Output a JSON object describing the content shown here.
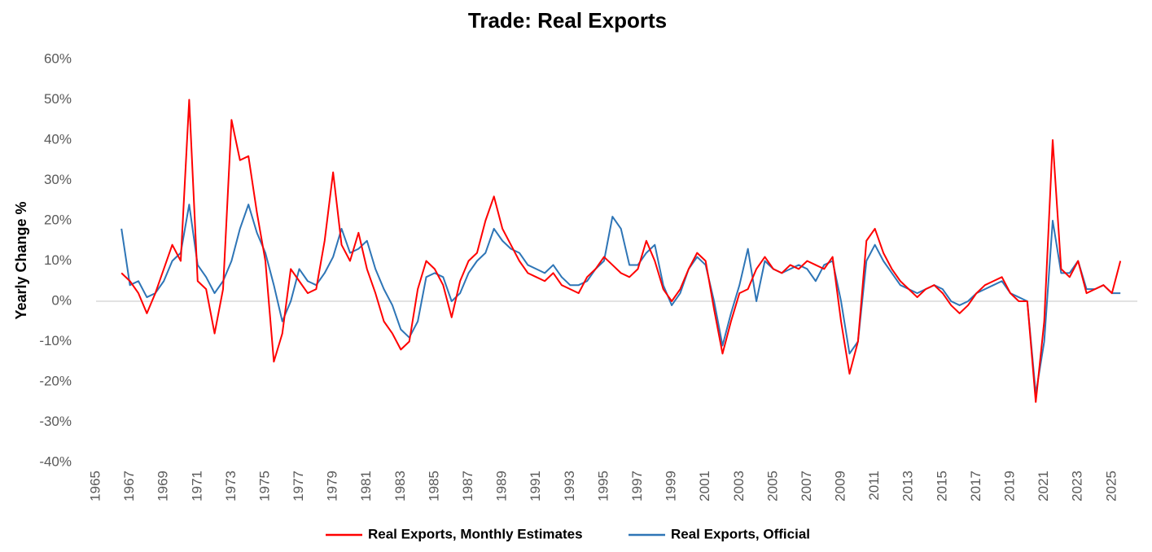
{
  "chart_data": {
    "type": "line",
    "title": "Trade: Real Exports",
    "y_label": "Yearly Change %",
    "x": [
      1966.5,
      1967,
      1967.5,
      1968,
      1968.5,
      1969,
      1969.5,
      1970,
      1970.5,
      1971,
      1971.5,
      1972,
      1972.5,
      1973,
      1973.5,
      1974,
      1974.5,
      1975,
      1975.5,
      1976,
      1976.5,
      1977,
      1977.5,
      1978,
      1978.5,
      1979,
      1979.5,
      1980,
      1980.5,
      1981,
      1981.5,
      1982,
      1982.5,
      1983,
      1983.5,
      1984,
      1984.5,
      1985,
      1985.5,
      1986,
      1986.5,
      1987,
      1987.5,
      1988,
      1988.5,
      1989,
      1989.5,
      1990,
      1990.5,
      1991,
      1991.5,
      1992,
      1992.5,
      1993,
      1993.5,
      1994,
      1994.5,
      1995,
      1995.5,
      1996,
      1996.5,
      1997,
      1997.5,
      1998,
      1998.5,
      1999,
      1999.5,
      2000,
      2000.5,
      2001,
      2001.5,
      2002,
      2002.5,
      2003,
      2003.5,
      2004,
      2004.5,
      2005,
      2005.5,
      2006,
      2006.5,
      2007,
      2007.5,
      2008,
      2008.5,
      2009,
      2009.5,
      2010,
      2010.5,
      2011,
      2011.5,
      2012,
      2012.5,
      2013,
      2013.5,
      2014,
      2014.5,
      2015,
      2015.5,
      2016,
      2016.5,
      2017,
      2017.5,
      2018,
      2018.5,
      2019,
      2019.5,
      2020,
      2020.5,
      2021,
      2021.5,
      2022,
      2022.5,
      2023,
      2023.5,
      2024,
      2024.5,
      2025,
      2025.5
    ],
    "series": [
      {
        "name": "Real Exports, Monthly Estimates",
        "color": "#ff0000",
        "values": [
          7,
          5,
          2,
          -3,
          2,
          8,
          14,
          10,
          50,
          5,
          3,
          -8,
          3,
          45,
          35,
          36,
          22,
          10,
          -15,
          -8,
          8,
          5,
          2,
          3,
          15,
          32,
          14,
          10,
          17,
          8,
          2,
          -5,
          -8,
          -12,
          -10,
          3,
          10,
          8,
          4,
          -4,
          5,
          10,
          12,
          20,
          26,
          18,
          14,
          10,
          7,
          6,
          5,
          7,
          4,
          3,
          2,
          6,
          8,
          11,
          9,
          7,
          6,
          8,
          15,
          10,
          3,
          0,
          3,
          8,
          12,
          10,
          -2,
          -13,
          -5,
          2,
          3,
          8,
          11,
          8,
          7,
          9,
          8,
          10,
          9,
          8,
          11,
          -5,
          -18,
          -10,
          15,
          18,
          12,
          8,
          5,
          3,
          1,
          3,
          4,
          2,
          -1,
          -3,
          -1,
          2,
          4,
          5,
          6,
          2,
          0,
          0,
          -25,
          -5,
          40,
          8,
          6,
          10,
          2,
          3,
          4,
          2,
          10
        ]
      },
      {
        "name": "Real Exports, Official",
        "color": "#2e75b6",
        "values": [
          18,
          4,
          5,
          1,
          2,
          5,
          10,
          12,
          24,
          9,
          6,
          2,
          5,
          10,
          18,
          24,
          17,
          12,
          4,
          -5,
          0,
          8,
          5,
          4,
          7,
          11,
          18,
          12,
          13,
          15,
          8,
          3,
          -1,
          -7,
          -9,
          -5,
          6,
          7,
          6,
          0,
          2,
          7,
          10,
          12,
          18,
          15,
          13,
          12,
          9,
          8,
          7,
          9,
          6,
          4,
          4,
          5,
          8,
          10,
          21,
          18,
          9,
          9,
          12,
          14,
          4,
          -1,
          2,
          8,
          11,
          9,
          0,
          -11,
          -3,
          4,
          13,
          0,
          10,
          8,
          7,
          8,
          9,
          8,
          5,
          9,
          10,
          0,
          -13,
          -10,
          10,
          14,
          10,
          7,
          4,
          3,
          2,
          3,
          4,
          3,
          0,
          -1,
          0,
          2,
          3,
          4,
          5,
          2,
          1,
          0,
          -23,
          -10,
          20,
          7,
          7,
          10,
          3,
          3,
          4,
          2,
          2
        ]
      }
    ],
    "xlim": [
      1965,
      2026.5
    ],
    "xticks": [
      1965,
      1967,
      1969,
      1971,
      1973,
      1975,
      1977,
      1979,
      1981,
      1983,
      1985,
      1987,
      1989,
      1991,
      1993,
      1995,
      1997,
      1999,
      2001,
      2003,
      2005,
      2007,
      2009,
      2011,
      2013,
      2015,
      2017,
      2019,
      2021,
      2023,
      2025
    ],
    "ylim": [
      -40,
      60
    ],
    "yticks": [
      {
        "value": -40,
        "label": "-40%"
      },
      {
        "value": -30,
        "label": "-30%"
      },
      {
        "value": -20,
        "label": "-20%"
      },
      {
        "value": -10,
        "label": "-10%"
      },
      {
        "value": 0,
        "label": "0%"
      },
      {
        "value": 10,
        "label": "10%"
      },
      {
        "value": 20,
        "label": "20%"
      },
      {
        "value": 30,
        "label": "30%"
      },
      {
        "value": 40,
        "label": "40%"
      },
      {
        "value": 50,
        "label": "50%"
      },
      {
        "value": 60,
        "label": "60%"
      }
    ],
    "legend": "bottom"
  }
}
